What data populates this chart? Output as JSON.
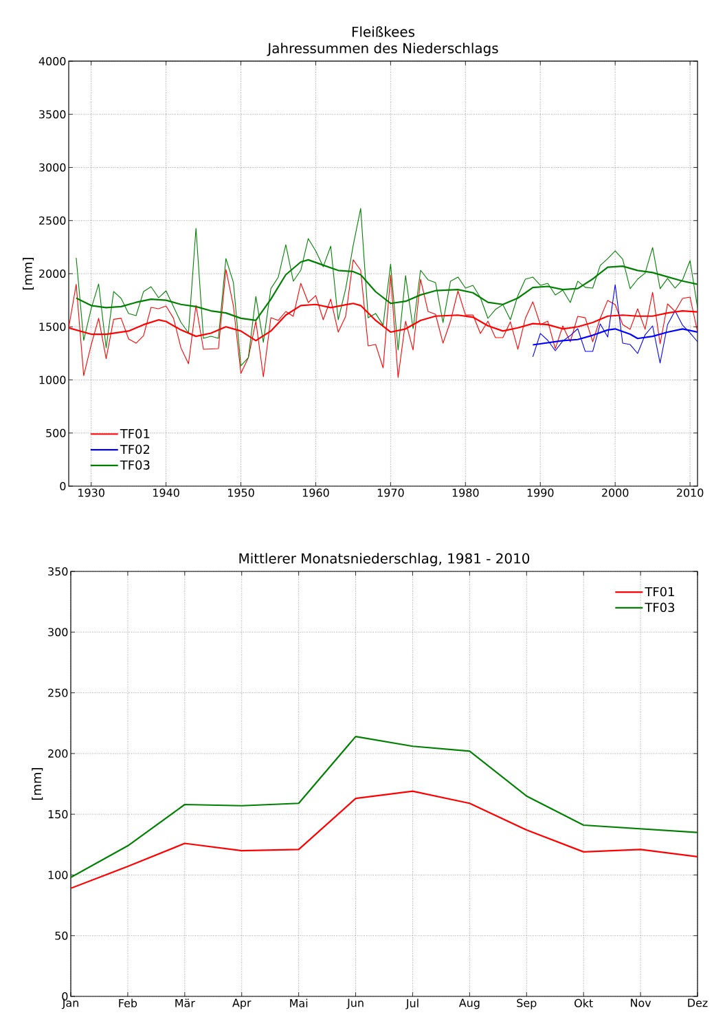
{
  "chart_data": [
    {
      "type": "line",
      "title": "Fleißkees",
      "subtitle": "Jahressummen des Niederschlags",
      "ylabel": "[mm]",
      "xlim": [
        1927,
        2011
      ],
      "xticks": [
        1930,
        1940,
        1950,
        1960,
        1970,
        1980,
        1990,
        2000,
        2010
      ],
      "ylim": [
        0,
        4000
      ],
      "yticks": [
        0,
        500,
        1000,
        1500,
        2000,
        2500,
        3000,
        3500,
        4000
      ],
      "grid": true,
      "legend": "bottom left",
      "series": [
        {
          "color": "#ff0000",
          "x": [
            1927,
            1928,
            1929,
            1930,
            1931,
            1932,
            1933,
            1934,
            1935,
            1936,
            1937,
            1938,
            1939,
            1940,
            1941,
            1942,
            1943,
            1944,
            1945,
            1946,
            1947,
            1948,
            1949,
            1950,
            1951,
            1952,
            1953,
            1954,
            1955,
            1956,
            1957,
            1958,
            1959,
            1960,
            1961,
            1962,
            1963,
            1964,
            1965,
            1966,
            1967,
            1968,
            1969,
            1970,
            1971,
            1972,
            1973,
            1974,
            1975,
            1976,
            1977,
            1978,
            1979,
            1980,
            1981,
            1982,
            1983,
            1984,
            1985,
            1986,
            1987,
            1988,
            1989,
            1990,
            1991,
            1992,
            1993,
            1994,
            1995,
            1996,
            1997,
            1998,
            1999,
            2000,
            2001,
            2002,
            2003,
            2004,
            2005,
            2006,
            2007,
            2008,
            2009,
            2010,
            2011
          ],
          "values": [
            1490,
            1900,
            1040,
            1330,
            1580,
            1200,
            1570,
            1580,
            1385,
            1346,
            1417,
            1683,
            1670,
            1696,
            1580,
            1300,
            1152,
            1702,
            1288,
            1291,
            1294,
            2039,
            1696,
            1061,
            1210,
            1553,
            1029,
            1585,
            1560,
            1644,
            1599,
            1909,
            1728,
            1793,
            1566,
            1760,
            1450,
            1599,
            2130,
            2032,
            1320,
            1333,
            1113,
            1987,
            1023,
            1553,
            1281,
            1948,
            1644,
            1618,
            1346,
            1553,
            1838,
            1611,
            1611,
            1437,
            1553,
            1398,
            1398,
            1547,
            1288,
            1579,
            1735,
            1521,
            1553,
            1294,
            1508,
            1359,
            1599,
            1585,
            1359,
            1579,
            1748,
            1709,
            1521,
            1476,
            1670,
            1476,
            1825,
            1340,
            1715,
            1644,
            1767,
            1780,
            1450
          ]
        },
        {
          "color": "#0000ff",
          "x": [
            1989,
            1990,
            1991,
            1992,
            1993,
            1994,
            1995,
            1996,
            1997,
            1998,
            1999,
            2000,
            2001,
            2002,
            2003,
            2004,
            2005,
            2006,
            2007,
            2008,
            2009,
            2010,
            2011
          ],
          "values": [
            1217,
            1437,
            1372,
            1275,
            1366,
            1417,
            1482,
            1268,
            1268,
            1527,
            1404,
            1896,
            1346,
            1333,
            1249,
            1424,
            1508,
            1159,
            1521,
            1650,
            1515,
            1443,
            1359
          ]
        },
        {
          "color": "#008000",
          "x": [
            1928,
            1929,
            1930,
            1931,
            1932,
            1933,
            1934,
            1935,
            1936,
            1937,
            1938,
            1939,
            1940,
            1941,
            1942,
            1943,
            1944,
            1945,
            1946,
            1947,
            1948,
            1949,
            1950,
            1951,
            1952,
            1953,
            1954,
            1955,
            1956,
            1957,
            1958,
            1959,
            1960,
            1961,
            1962,
            1963,
            1964,
            1965,
            1966,
            1967,
            1968,
            1969,
            1970,
            1971,
            1972,
            1973,
            1974,
            1975,
            1976,
            1977,
            1978,
            1979,
            1980,
            1981,
            1982,
            1983,
            1984,
            1985,
            1986,
            1987,
            1988,
            1989,
            1990,
            1991,
            1992,
            1993,
            1994,
            1995,
            1996,
            1997,
            1998,
            1999,
            2000,
            2001,
            2002,
            2003,
            2004,
            2005,
            2006,
            2007,
            2008,
            2009,
            2010,
            2011
          ],
          "values": [
            2149,
            1372,
            1670,
            1903,
            1301,
            1832,
            1767,
            1625,
            1605,
            1832,
            1877,
            1773,
            1838,
            1689,
            1540,
            1443,
            2427,
            1392,
            1411,
            1392,
            2142,
            1916,
            1133,
            1210,
            1786,
            1353,
            1858,
            1968,
            2272,
            1929,
            2032,
            2330,
            2214,
            2065,
            2259,
            1566,
            1858,
            2265,
            2614,
            1585,
            1625,
            1515,
            2090,
            1281,
            1981,
            1482,
            2032,
            1942,
            1916,
            1540,
            1929,
            1968,
            1864,
            1890,
            1773,
            1579,
            1663,
            1709,
            1566,
            1793,
            1948,
            1968,
            1890,
            1909,
            1799,
            1845,
            1728,
            1929,
            1871,
            1864,
            2077,
            2142,
            2214,
            2136,
            1858,
            1948,
            2006,
            2246,
            1858,
            1955,
            1864,
            1942,
            2123,
            1680
          ]
        },
        {
          "name": "TF01",
          "color": "#ff0000",
          "x": [
            1927,
            1930,
            1932,
            1935,
            1937,
            1939,
            1940,
            1942,
            1944,
            1946,
            1948,
            1950,
            1952,
            1954,
            1956,
            1958,
            1960,
            1962,
            1965,
            1966,
            1968,
            1970,
            1972,
            1974,
            1976,
            1979,
            1981,
            1983,
            1985,
            1987,
            1989,
            1991,
            1993,
            1995,
            1997,
            1999,
            2001,
            2003,
            2005,
            2007,
            2009,
            2011
          ],
          "values": [
            1490,
            1430,
            1430,
            1460,
            1520,
            1565,
            1550,
            1470,
            1410,
            1440,
            1500,
            1460,
            1370,
            1460,
            1610,
            1700,
            1710,
            1680,
            1720,
            1700,
            1560,
            1450,
            1480,
            1560,
            1600,
            1610,
            1590,
            1510,
            1460,
            1490,
            1530,
            1520,
            1480,
            1500,
            1540,
            1600,
            1610,
            1600,
            1600,
            1630,
            1650,
            1640
          ]
        },
        {
          "name": "TF02",
          "color": "#0000ff",
          "x": [
            1989,
            1991,
            1993,
            1995,
            1997,
            1999,
            2000,
            2002,
            2003,
            2005,
            2007,
            2009,
            2011
          ],
          "values": [
            1330,
            1350,
            1370,
            1380,
            1420,
            1470,
            1480,
            1430,
            1390,
            1410,
            1450,
            1480,
            1450
          ]
        },
        {
          "name": "TF03",
          "color": "#008000",
          "x": [
            1928,
            1930,
            1932,
            1934,
            1936,
            1938,
            1940,
            1942,
            1944,
            1946,
            1948,
            1950,
            1952,
            1954,
            1956,
            1958,
            1959,
            1961,
            1963,
            1965,
            1966,
            1968,
            1970,
            1972,
            1974,
            1976,
            1979,
            1981,
            1983,
            1985,
            1987,
            1989,
            1991,
            1993,
            1995,
            1997,
            1999,
            2001,
            2003,
            2005,
            2007,
            2009,
            2011
          ],
          "values": [
            1770,
            1700,
            1680,
            1690,
            1730,
            1760,
            1750,
            1710,
            1690,
            1650,
            1630,
            1580,
            1560,
            1760,
            1990,
            2110,
            2130,
            2080,
            2030,
            2020,
            1990,
            1830,
            1720,
            1740,
            1800,
            1840,
            1850,
            1820,
            1730,
            1710,
            1770,
            1870,
            1880,
            1850,
            1860,
            1950,
            2060,
            2070,
            2030,
            2010,
            1970,
            1930,
            1900
          ]
        }
      ]
    },
    {
      "type": "line",
      "title": "Mittlerer Monatsniederschlag, 1981 - 2010",
      "ylabel": "[mm]",
      "categories": [
        "Jan",
        "Feb",
        "Mär",
        "Apr",
        "Mai",
        "Jun",
        "Jul",
        "Aug",
        "Sep",
        "Okt",
        "Nov",
        "Dez"
      ],
      "ylim": [
        0,
        350
      ],
      "yticks": [
        0,
        50,
        100,
        150,
        200,
        250,
        300,
        350
      ],
      "grid": true,
      "legend": "top right",
      "series": [
        {
          "name": "TF01",
          "color": "#ff0000",
          "values": [
            89,
            107,
            126,
            120,
            121,
            163,
            169,
            159,
            137,
            119,
            121,
            115
          ]
        },
        {
          "name": "TF03",
          "color": "#008000",
          "values": [
            98,
            124,
            158,
            157,
            159,
            214,
            206,
            202,
            165,
            141,
            138,
            135
          ]
        }
      ]
    }
  ]
}
